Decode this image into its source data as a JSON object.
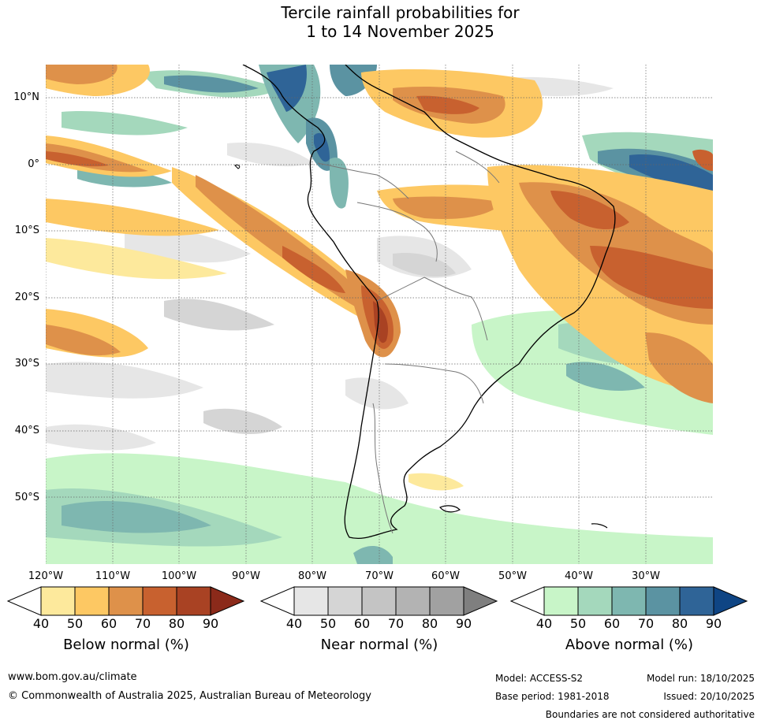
{
  "title_line1": "Tercile rainfall probabilities for",
  "title_line2": "1 to 14 November 2025",
  "map": {
    "region": "South America",
    "lat_labels": [
      "10°N",
      "0°",
      "10°S",
      "20°S",
      "30°S",
      "40°S",
      "50°S"
    ],
    "lon_labels": [
      "120°W",
      "110°W",
      "100°W",
      "90°W",
      "80°W",
      "70°W",
      "60°W",
      "50°W",
      "40°W",
      "30°W"
    ],
    "lat_range": [
      -60,
      15
    ],
    "lon_range": [
      -120,
      -20
    ]
  },
  "colorbars": [
    {
      "title": "Below normal (%)",
      "ticks": [
        "40",
        "50",
        "60",
        "70",
        "80",
        "90"
      ],
      "colors": [
        "#ffffff",
        "#fde99c",
        "#fdc863",
        "#de914a",
        "#c8612f",
        "#a94223",
        "#8b2a1a"
      ]
    },
    {
      "title": "Near normal (%)",
      "ticks": [
        "40",
        "50",
        "60",
        "70",
        "80",
        "90"
      ],
      "colors": [
        "#ffffff",
        "#e6e6e6",
        "#d5d5d5",
        "#c4c4c4",
        "#b3b3b3",
        "#a1a1a1",
        "#7f7f7f"
      ]
    },
    {
      "title": "Above normal (%)",
      "ticks": [
        "40",
        "50",
        "60",
        "70",
        "80",
        "90"
      ],
      "colors": [
        "#ffffff",
        "#c8f5c8",
        "#a4d8bc",
        "#7eb7b0",
        "#5b93a2",
        "#2f6497",
        "#0f4584"
      ]
    }
  ],
  "footer": {
    "url": "www.bom.gov.au/climate",
    "copyright": "© Commonwealth of Australia 2025, Australian Bureau of Meteorology",
    "model": "Model: ACCESS-S2",
    "base_period": "Base period: 1981-2018",
    "model_run": "Model run: 18/10/2025",
    "issued": "Issued: 20/10/2025",
    "disclaimer": "Boundaries are not considered authoritative"
  }
}
